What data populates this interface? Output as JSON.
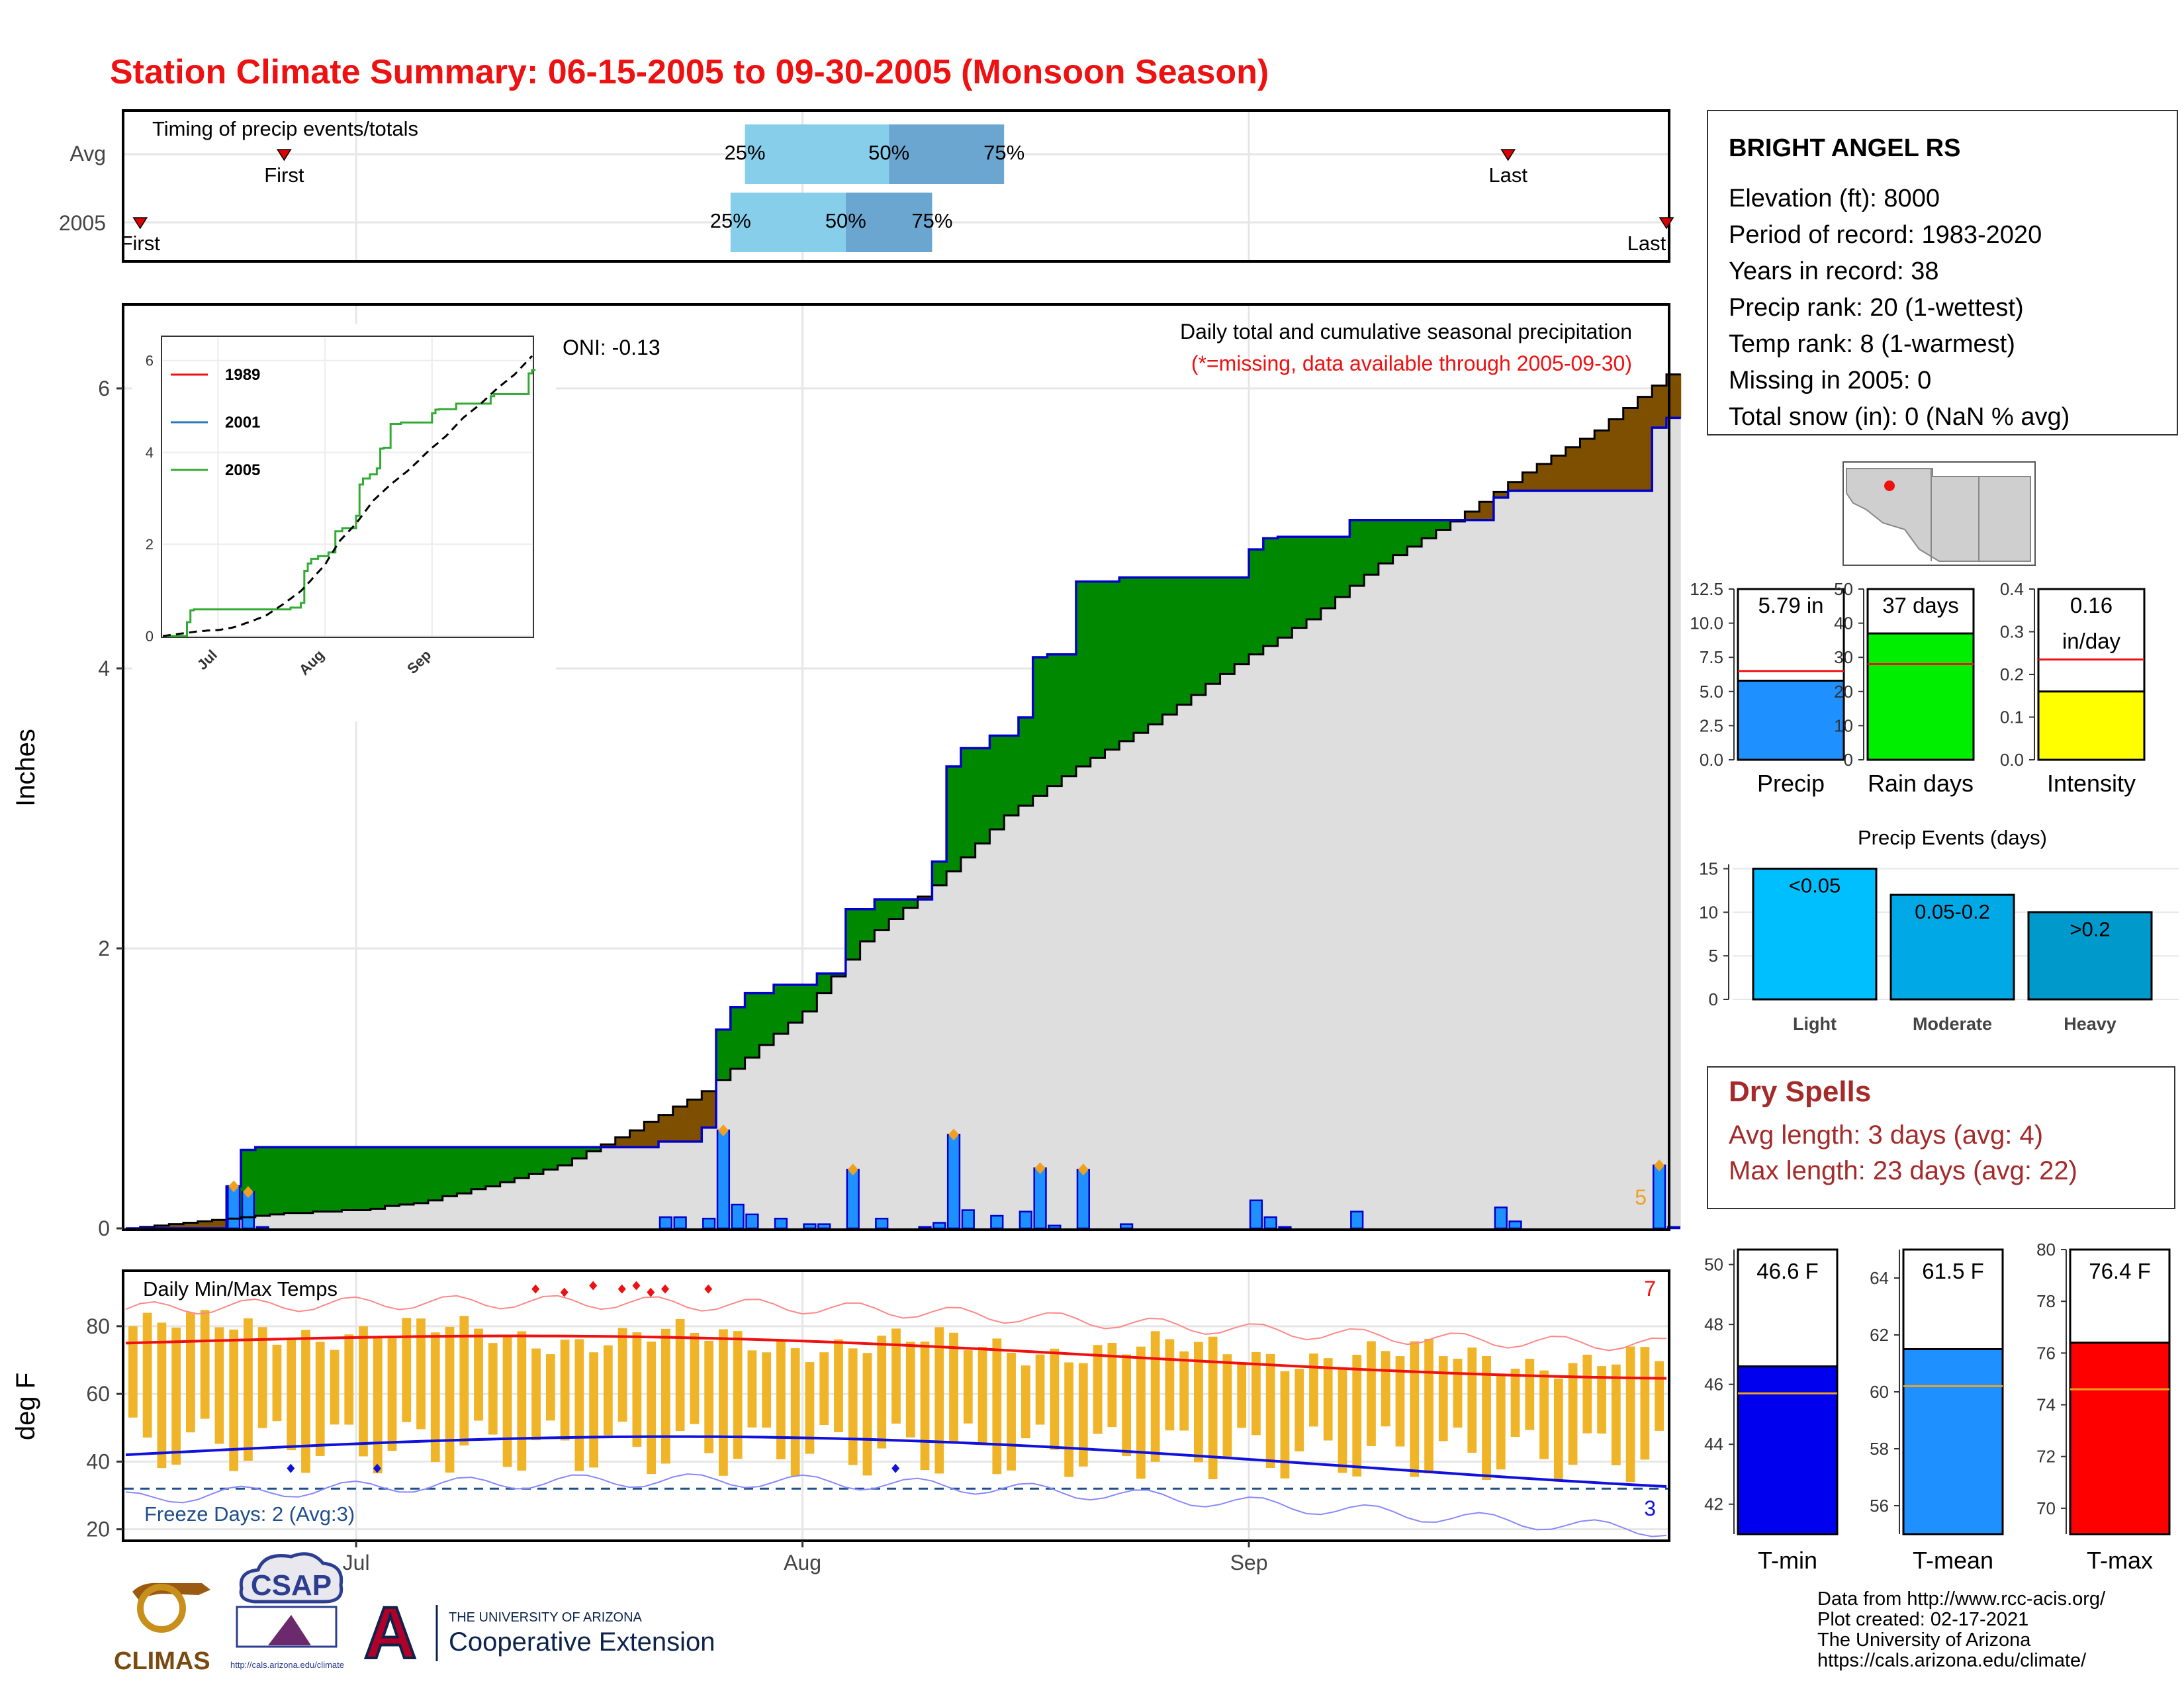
{
  "title": "Station Climate Summary: 06-15-2005 to 09-30-2005 (Monsoon Season)",
  "colors": {
    "title": "#ee1111",
    "green": "#008800",
    "brown": "#7f4f00",
    "blue_bar": "#1e90ff",
    "grey_area": "#dedede",
    "tmax": "#ee1111",
    "tmin": "#1111dd",
    "temp_bar": "#f0b429",
    "avg_line": "#f0a020",
    "dry_spell": "#a52a2a"
  },
  "timing": {
    "title": "Timing of precip events/totals",
    "rows": [
      {
        "label": "Avg",
        "first_date": "06-26",
        "last_date": "09-19",
        "q25_date": "07-28",
        "q50_date": "08-07",
        "q75_date": "08-15",
        "q25": "25%",
        "q50": "50%",
        "q75": "75%",
        "first": "First",
        "last": "Last"
      },
      {
        "label": "2005",
        "first_date": "06-16",
        "last_date": "09-30",
        "q25_date": "07-27",
        "q50_date": "08-04",
        "q75_date": "08-10",
        "q25": "25%",
        "q50": "50%",
        "q75": "75%",
        "first": "First",
        "last": "Last"
      }
    ]
  },
  "main": {
    "ylabel": "Inches",
    "yticks": [
      "0",
      "2",
      "4",
      "6"
    ],
    "xticks": [
      "Jul",
      "Aug",
      "Sep"
    ],
    "annot_title": "Daily total and cumulative seasonal precipitation",
    "annot_missing": "(*=missing, data available through 2005-09-30)",
    "oni": "ONI: -0.13",
    "count_label": "5"
  },
  "inset": {
    "yticks": [
      "0",
      "2",
      "4",
      "6"
    ],
    "xticks": [
      "Jul",
      "Aug",
      "Sep"
    ],
    "legend": [
      {
        "name": "1989",
        "color": "#ee1111"
      },
      {
        "name": "2001",
        "color": "#2a7ab8"
      },
      {
        "name": "2005",
        "color": "#33aa33"
      }
    ]
  },
  "temps": {
    "ylabel": "deg F",
    "title": "Daily Min/Max Temps",
    "freeze": "Freeze Days: 2 (Avg:3)",
    "hot_count": "7",
    "cold_count": "3",
    "yticks": [
      "20",
      "40",
      "60",
      "80"
    ]
  },
  "station": {
    "name": "BRIGHT ANGEL RS",
    "lines": [
      "Elevation (ft): 8000",
      "Period of record: 1983-2020",
      "Years in record: 38",
      "Precip rank: 20 (1-wettest)",
      "Temp rank: 8 (1-warmest)",
      "Missing in 2005: 0",
      "Total snow (in): 0 (NaN % avg)"
    ]
  },
  "mini_bars": [
    {
      "label": "Precip",
      "value_text": "5.79 in",
      "value": 5.79,
      "avg": 6.5,
      "ymax": 12.5,
      "ticks": [
        "0.0",
        "2.5",
        "5.0",
        "7.5",
        "10.0",
        "12.5"
      ],
      "color": "#1e90ff"
    },
    {
      "label": "Rain days",
      "value_text": "37 days",
      "value": 37,
      "avg": 28,
      "ymax": 50,
      "ticks": [
        "0",
        "10",
        "20",
        "30",
        "40",
        "50"
      ],
      "color": "#00ee00"
    },
    {
      "label": "Intensity",
      "value_text": "0.16",
      "value_text2": "in/day",
      "value": 0.16,
      "avg": 0.235,
      "ymax": 0.4,
      "ticks": [
        "0.0",
        "0.1",
        "0.2",
        "0.3",
        "0.4"
      ],
      "color": "#ffff00"
    }
  ],
  "events": {
    "title": "Precip Events (days)",
    "yticks": [
      "0",
      "5",
      "10",
      "15"
    ],
    "bars": [
      {
        "label": "Light",
        "text": "<0.05",
        "value": 15,
        "color": "#00bfff"
      },
      {
        "label": "Moderate",
        "text": "0.05-0.2",
        "value": 12,
        "color": "#00a8e6"
      },
      {
        "label": "Heavy",
        "text": ">0.2",
        "value": 10,
        "color": "#0099cc"
      }
    ]
  },
  "dry": {
    "title": "Dry Spells",
    "avg": "Avg length: 3 days (avg: 4)",
    "max": "Max length: 23 days (avg: 22)"
  },
  "temp_bars": [
    {
      "label": "T-min",
      "value_text": "46.6 F",
      "value": 46.6,
      "avg": 45.7,
      "ymin": 41,
      "ymax": 50.5,
      "ticks": [
        "42",
        "44",
        "46",
        "48",
        "50"
      ],
      "color": "#0000ee"
    },
    {
      "label": "T-mean",
      "value_text": "61.5 F",
      "value": 61.5,
      "avg": 60.2,
      "ymin": 55,
      "ymax": 65,
      "ticks": [
        "56",
        "58",
        "60",
        "62",
        "64"
      ],
      "color": "#1e90ff"
    },
    {
      "label": "T-max",
      "value_text": "76.4 F",
      "value": 76.4,
      "avg": 74.6,
      "ymin": 69,
      "ymax": 80,
      "ticks": [
        "70",
        "72",
        "74",
        "76",
        "78",
        "80"
      ],
      "color": "#ff0000"
    }
  ],
  "footer": [
    "Data from http://www.rcc-acis.org/",
    "Plot created: 02-17-2021",
    "The University of Arizona",
    "https://cals.arizona.edu/climate/"
  ],
  "logos": {
    "climas": "CLIMAS",
    "csap": "CSAP",
    "csap_url": "http://cals.arizona.edu/climate",
    "ua_line1": "THE UNIVERSITY OF ARIZONA",
    "ua_line2": "Cooperative Extension"
  },
  "chart_data": {
    "type": "area",
    "period": {
      "start": "2005-06-15",
      "end": "2005-09-30"
    },
    "daily_precip_2005": [
      {
        "date": "2005-06-15",
        "value": 0.0
      },
      {
        "date": "2005-06-22",
        "value": 0.3
      },
      {
        "date": "2005-06-23",
        "value": 0.26
      },
      {
        "date": "2005-06-24",
        "value": 0.01
      },
      {
        "date": "2005-07-22",
        "value": 0.08
      },
      {
        "date": "2005-07-23",
        "value": 0.08
      },
      {
        "date": "2005-07-25",
        "value": 0.07
      },
      {
        "date": "2005-07-26",
        "value": 0.7
      },
      {
        "date": "2005-07-27",
        "value": 0.17
      },
      {
        "date": "2005-07-28",
        "value": 0.1
      },
      {
        "date": "2005-07-30",
        "value": 0.07
      },
      {
        "date": "2005-08-01",
        "value": 0.03
      },
      {
        "date": "2005-08-02",
        "value": 0.03
      },
      {
        "date": "2005-08-04",
        "value": 0.42
      },
      {
        "date": "2005-08-06",
        "value": 0.07
      },
      {
        "date": "2005-08-09",
        "value": 0.01
      },
      {
        "date": "2005-08-10",
        "value": 0.04
      },
      {
        "date": "2005-08-11",
        "value": 0.67
      },
      {
        "date": "2005-08-12",
        "value": 0.13
      },
      {
        "date": "2005-08-14",
        "value": 0.09
      },
      {
        "date": "2005-08-16",
        "value": 0.12
      },
      {
        "date": "2005-08-17",
        "value": 0.43
      },
      {
        "date": "2005-08-18",
        "value": 0.02
      },
      {
        "date": "2005-08-20",
        "value": 0.42
      },
      {
        "date": "2005-08-23",
        "value": 0.03
      },
      {
        "date": "2005-09-01",
        "value": 0.2
      },
      {
        "date": "2005-09-02",
        "value": 0.08
      },
      {
        "date": "2005-09-03",
        "value": 0.01
      },
      {
        "date": "2005-09-08",
        "value": 0.12
      },
      {
        "date": "2005-09-18",
        "value": 0.15
      },
      {
        "date": "2005-09-19",
        "value": 0.05
      },
      {
        "date": "2005-09-29",
        "value": 0.45
      },
      {
        "date": "2005-09-30",
        "value": 0.01
      }
    ],
    "cumulative_2005": [
      {
        "date": "2005-06-15",
        "value": 0.0
      },
      {
        "date": "2005-06-22",
        "value": 0.3
      },
      {
        "date": "2005-06-23",
        "value": 0.56
      },
      {
        "date": "2005-06-24",
        "value": 0.58
      },
      {
        "date": "2005-07-22",
        "value": 0.62
      },
      {
        "date": "2005-07-25",
        "value": 0.72
      },
      {
        "date": "2005-07-26",
        "value": 1.42
      },
      {
        "date": "2005-07-27",
        "value": 1.58
      },
      {
        "date": "2005-07-28",
        "value": 1.68
      },
      {
        "date": "2005-07-30",
        "value": 1.74
      },
      {
        "date": "2005-08-02",
        "value": 1.82
      },
      {
        "date": "2005-08-04",
        "value": 2.28
      },
      {
        "date": "2005-08-06",
        "value": 2.35
      },
      {
        "date": "2005-08-10",
        "value": 2.62
      },
      {
        "date": "2005-08-11",
        "value": 3.3
      },
      {
        "date": "2005-08-12",
        "value": 3.43
      },
      {
        "date": "2005-08-14",
        "value": 3.52
      },
      {
        "date": "2005-08-16",
        "value": 3.65
      },
      {
        "date": "2005-08-17",
        "value": 4.08
      },
      {
        "date": "2005-08-18",
        "value": 4.1
      },
      {
        "date": "2005-08-20",
        "value": 4.62
      },
      {
        "date": "2005-08-23",
        "value": 4.65
      },
      {
        "date": "2005-09-01",
        "value": 4.85
      },
      {
        "date": "2005-09-02",
        "value": 4.93
      },
      {
        "date": "2005-09-03",
        "value": 4.94
      },
      {
        "date": "2005-09-08",
        "value": 5.06
      },
      {
        "date": "2005-09-18",
        "value": 5.22
      },
      {
        "date": "2005-09-19",
        "value": 5.27
      },
      {
        "date": "2005-09-29",
        "value": 5.72
      },
      {
        "date": "2005-09-30",
        "value": 5.79
      }
    ],
    "cumulative_avg": [
      {
        "date": "2005-06-15",
        "value": 0.0
      },
      {
        "date": "2005-06-20",
        "value": 0.05
      },
      {
        "date": "2005-06-25",
        "value": 0.1
      },
      {
        "date": "2005-07-01",
        "value": 0.13
      },
      {
        "date": "2005-07-05",
        "value": 0.18
      },
      {
        "date": "2005-07-10",
        "value": 0.3
      },
      {
        "date": "2005-07-15",
        "value": 0.45
      },
      {
        "date": "2005-07-20",
        "value": 0.7
      },
      {
        "date": "2005-07-25",
        "value": 0.98
      },
      {
        "date": "2005-08-01",
        "value": 1.55
      },
      {
        "date": "2005-08-05",
        "value": 2.05
      },
      {
        "date": "2005-08-10",
        "value": 2.45
      },
      {
        "date": "2005-08-15",
        "value": 2.95
      },
      {
        "date": "2005-08-20",
        "value": 3.3
      },
      {
        "date": "2005-08-25",
        "value": 3.6
      },
      {
        "date": "2005-09-01",
        "value": 4.1
      },
      {
        "date": "2005-09-05",
        "value": 4.35
      },
      {
        "date": "2005-09-10",
        "value": 4.75
      },
      {
        "date": "2005-09-15",
        "value": 5.05
      },
      {
        "date": "2005-09-20",
        "value": 5.4
      },
      {
        "date": "2005-09-25",
        "value": 5.7
      },
      {
        "date": "2005-09-30",
        "value": 6.1
      }
    ],
    "xlabel": "",
    "ylabel": "Inches",
    "ylim": [
      0,
      6.6
    ]
  }
}
